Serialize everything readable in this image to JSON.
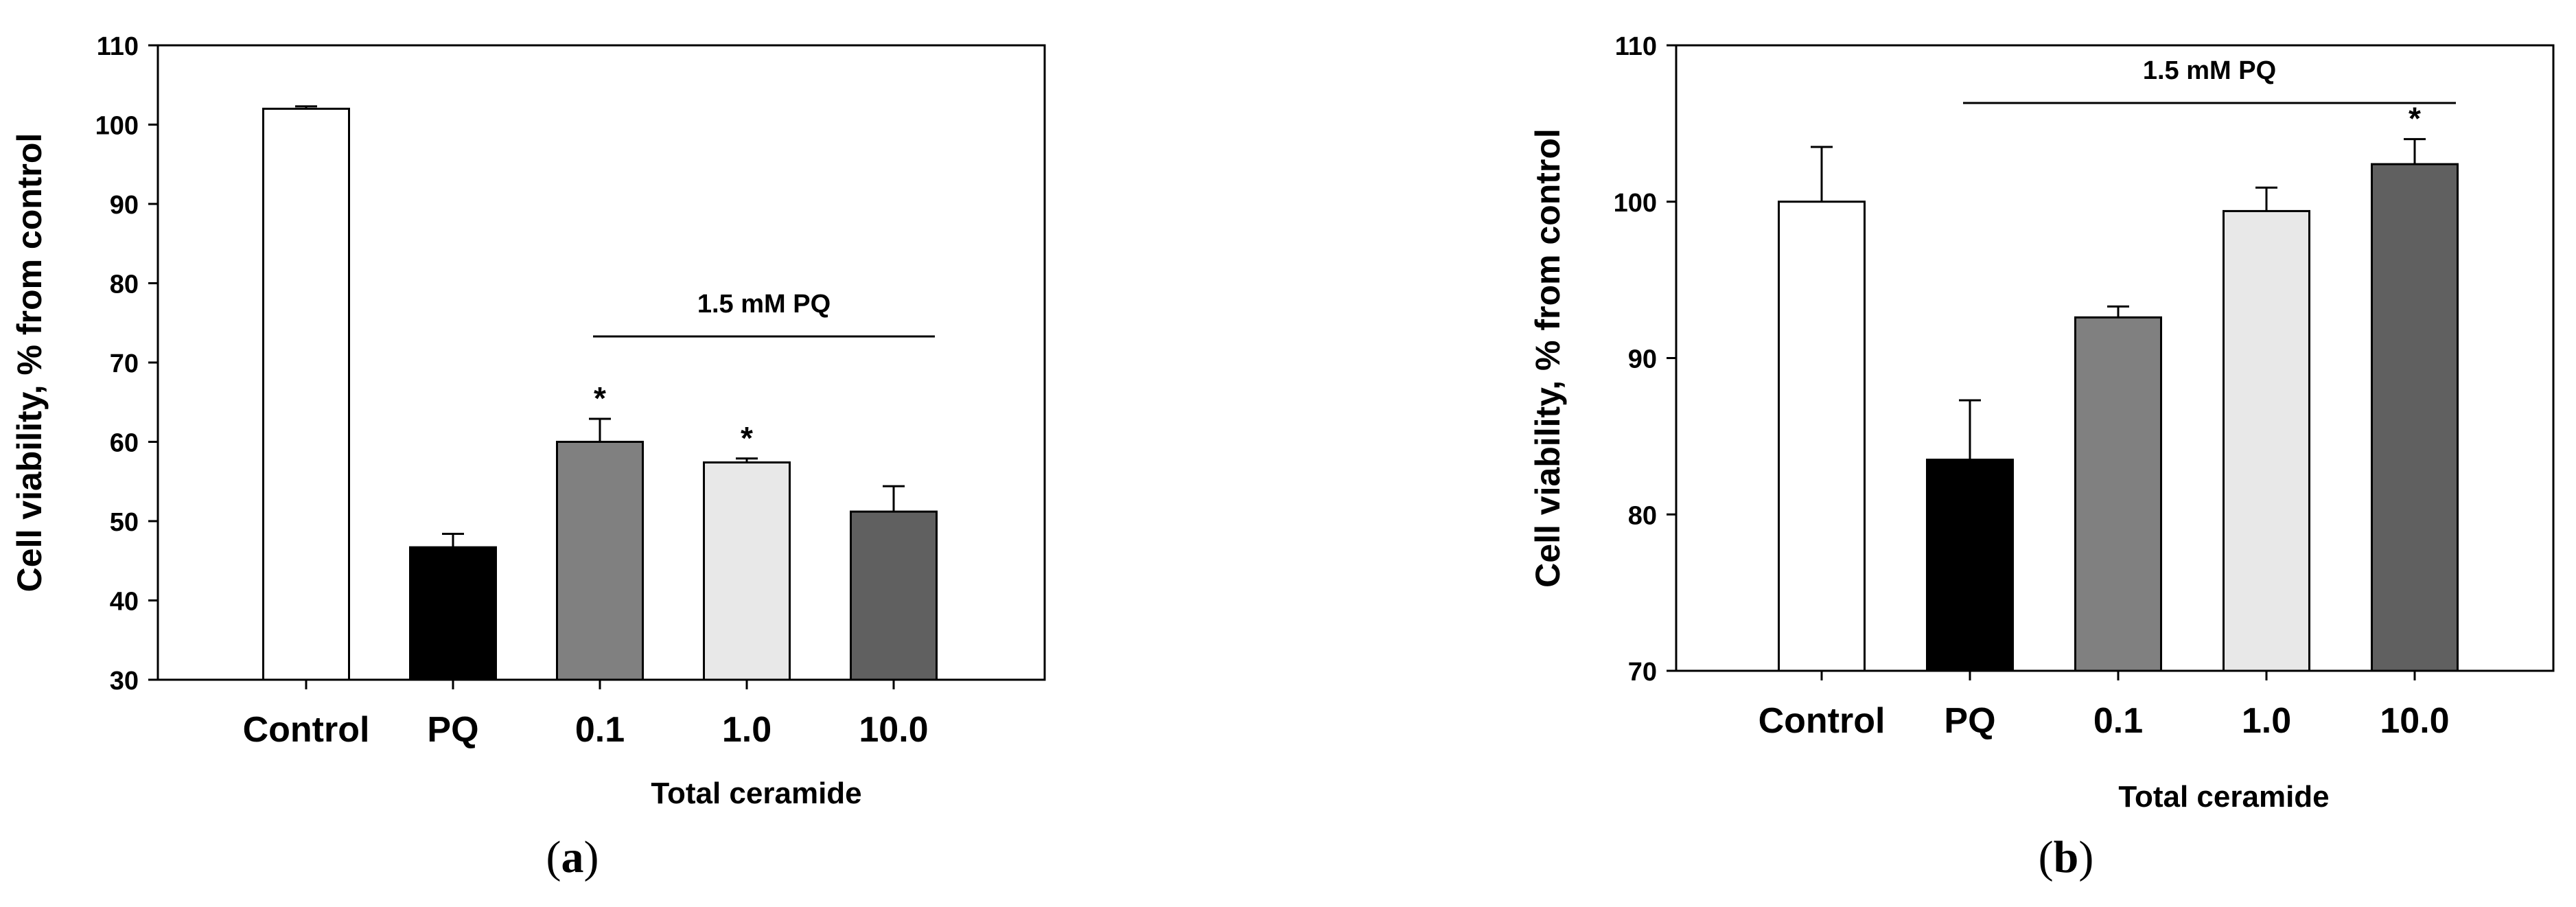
{
  "chart_data": [
    {
      "panel_label": "(a)",
      "type": "bar",
      "categories": [
        "Control",
        "PQ",
        "0.1",
        "1.0",
        "10.0"
      ],
      "values": [
        102,
        46.7,
        60.0,
        57.4,
        51.2
      ],
      "errors": [
        0.3,
        1.7,
        2.9,
        0.5,
        3.2
      ],
      "colors": [
        "#ffffff",
        "#000000",
        "#808080",
        "#e8e8e8",
        "#606060"
      ],
      "significance": [
        "",
        "",
        "*",
        "*",
        ""
      ],
      "ylabel": "Cell viability, % from control",
      "xlabel": "Total ceramide",
      "ylim": [
        30,
        110
      ],
      "yticks": [
        30,
        40,
        50,
        60,
        70,
        80,
        90,
        100,
        110
      ],
      "group_label": "1.5 mM PQ",
      "group_span": [
        "0.1",
        "10.0"
      ],
      "grid": false
    },
    {
      "panel_label": "(b)",
      "type": "bar",
      "categories": [
        "Control",
        "PQ",
        "0.1",
        "1.0",
        "10.0"
      ],
      "values": [
        100,
        83.5,
        92.6,
        99.4,
        102.4
      ],
      "errors": [
        3.5,
        3.8,
        0.7,
        1.5,
        1.6
      ],
      "colors": [
        "#ffffff",
        "#000000",
        "#808080",
        "#e8e8e8",
        "#606060"
      ],
      "significance": [
        "",
        "",
        "",
        "",
        "*"
      ],
      "ylabel": "Cell viability, % from control",
      "xlabel": "Total ceramide",
      "ylim": [
        70,
        110
      ],
      "yticks": [
        70,
        80,
        90,
        100,
        110
      ],
      "group_label": "1.5 mM PQ",
      "group_span": [
        "PQ",
        "10.0"
      ],
      "grid": false
    }
  ]
}
